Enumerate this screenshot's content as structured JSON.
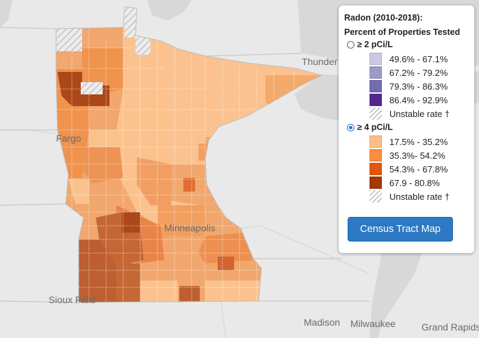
{
  "cities": [
    {
      "id": "thunder",
      "label": "Thunder"
    },
    {
      "id": "fargo",
      "label": "Fargo"
    },
    {
      "id": "minneapolis",
      "label": "Minneapolis"
    },
    {
      "id": "siouxfalls",
      "label": "Sioux Falls"
    },
    {
      "id": "madison",
      "label": "Madison"
    },
    {
      "id": "milwaukee",
      "label": "Milwaukee"
    },
    {
      "id": "grandrapids",
      "label": "Grand Rapids"
    }
  ],
  "legend": {
    "title_line1": "Radon (2010-2018):",
    "title_line2": "Percent of Properties Tested",
    "group2": {
      "label": "≥ 2 pCi/L",
      "selected": false,
      "bins": [
        {
          "label": "49.6% - 67.1%",
          "color": "#cbc9e2"
        },
        {
          "label": "67.2% - 79.2%",
          "color": "#9e9ac8"
        },
        {
          "label": "79.3% - 86.3%",
          "color": "#756bb1"
        },
        {
          "label": "86.4% - 92.9%",
          "color": "#54278f"
        }
      ],
      "unstable_label": "Unstable rate †"
    },
    "group4": {
      "label": "≥ 4 pCi/L",
      "selected": true,
      "bins": [
        {
          "label": "17.5% - 35.2%",
          "color": "#fdbe85"
        },
        {
          "label": "35.3%- 54.2%",
          "color": "#fd8d3c"
        },
        {
          "label": "54.3% - 67.8%",
          "color": "#e6550d"
        },
        {
          "label": "67.9 - 80.8%",
          "color": "#a63603"
        }
      ],
      "unstable_label": "Unstable rate †"
    },
    "button_label": "Census Tract Map"
  },
  "map_colors": {
    "water": "#d8d8d8",
    "land": "#e9e9e9",
    "border": "#c4c4c4",
    "county_line": "#ffffff",
    "opacity": 0.85
  }
}
